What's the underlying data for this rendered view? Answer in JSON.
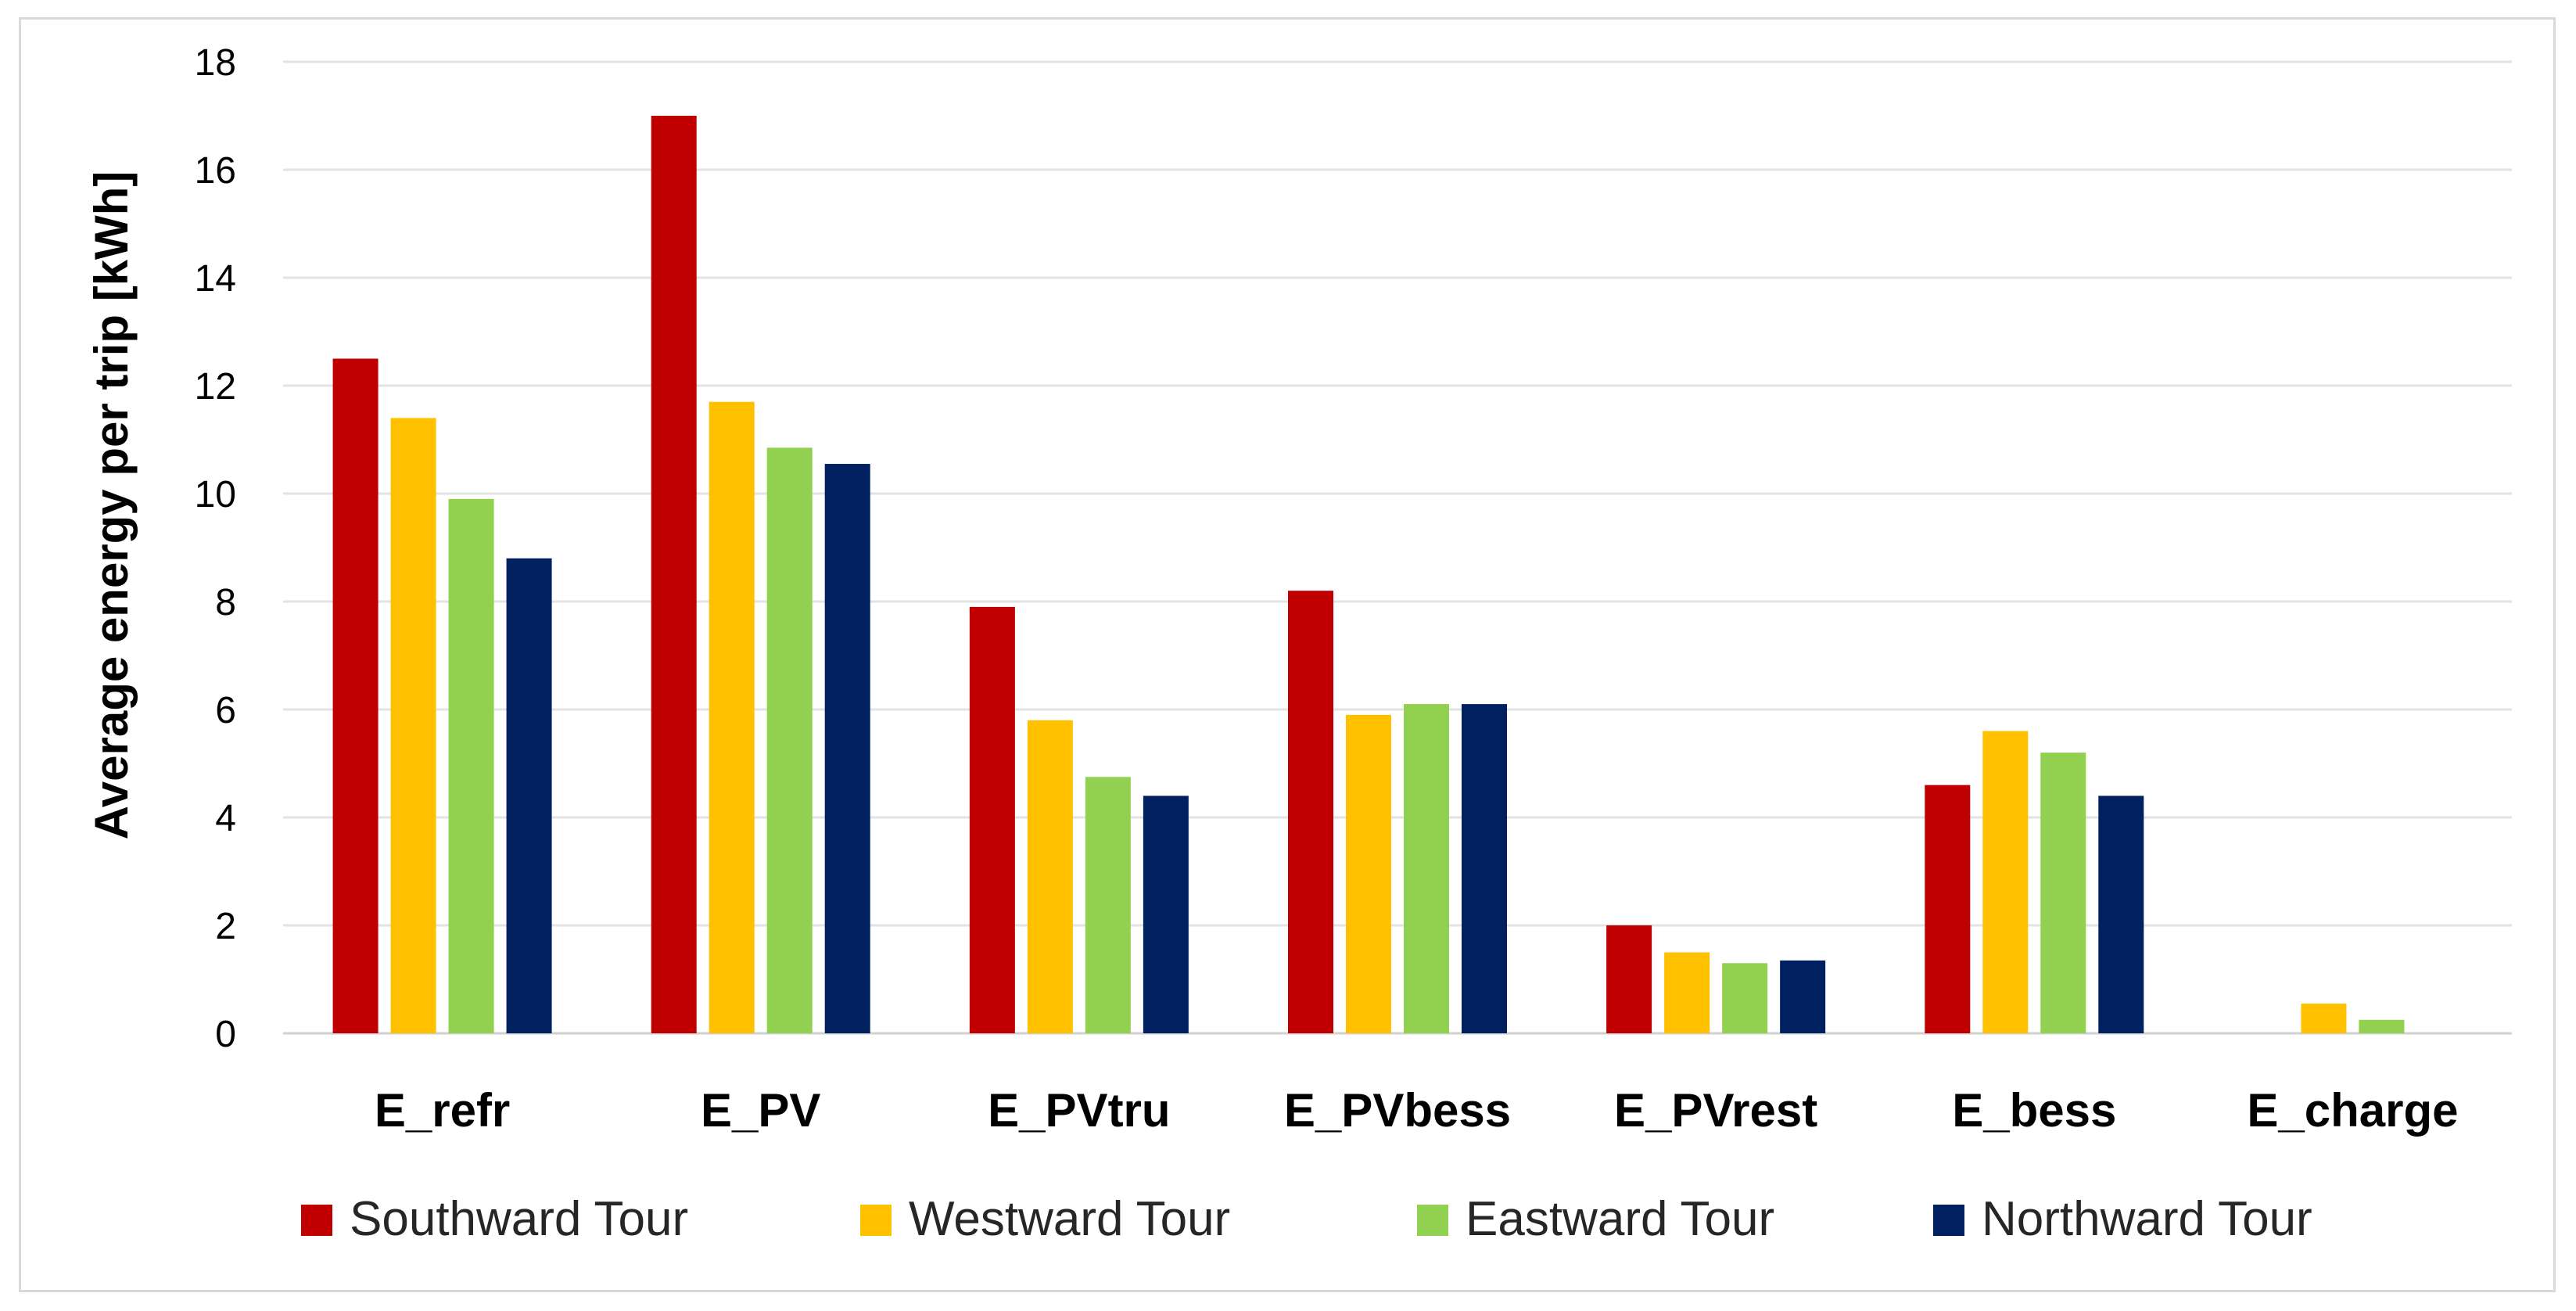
{
  "chart_data": {
    "type": "bar",
    "title": "",
    "xlabel": "",
    "ylabel": "Average energy per trip [kWh]",
    "ylim": [
      0,
      18
    ],
    "yticks": [
      0,
      2,
      4,
      6,
      8,
      10,
      12,
      14,
      16,
      18
    ],
    "grid": true,
    "legend_position": "bottom",
    "categories": [
      "E_refr",
      "E_PV",
      "E_PVtru",
      "E_PVbess",
      "E_PVrest",
      "E_bess",
      "E_charge"
    ],
    "series": [
      {
        "name": "Southward Tour",
        "color": "#c00000",
        "values": [
          12.5,
          17.0,
          7.9,
          8.2,
          2.0,
          4.6,
          0
        ]
      },
      {
        "name": "Westward Tour",
        "color": "#ffc000",
        "values": [
          11.4,
          11.7,
          5.8,
          5.9,
          1.5,
          5.6,
          0.55
        ]
      },
      {
        "name": "Eastward Tour",
        "color": "#92d050",
        "values": [
          9.9,
          10.85,
          4.75,
          6.1,
          1.3,
          5.2,
          0.25
        ]
      },
      {
        "name": "Northward Tour",
        "color": "#002060",
        "values": [
          8.8,
          10.55,
          4.4,
          6.1,
          1.35,
          4.4,
          0
        ]
      }
    ]
  }
}
